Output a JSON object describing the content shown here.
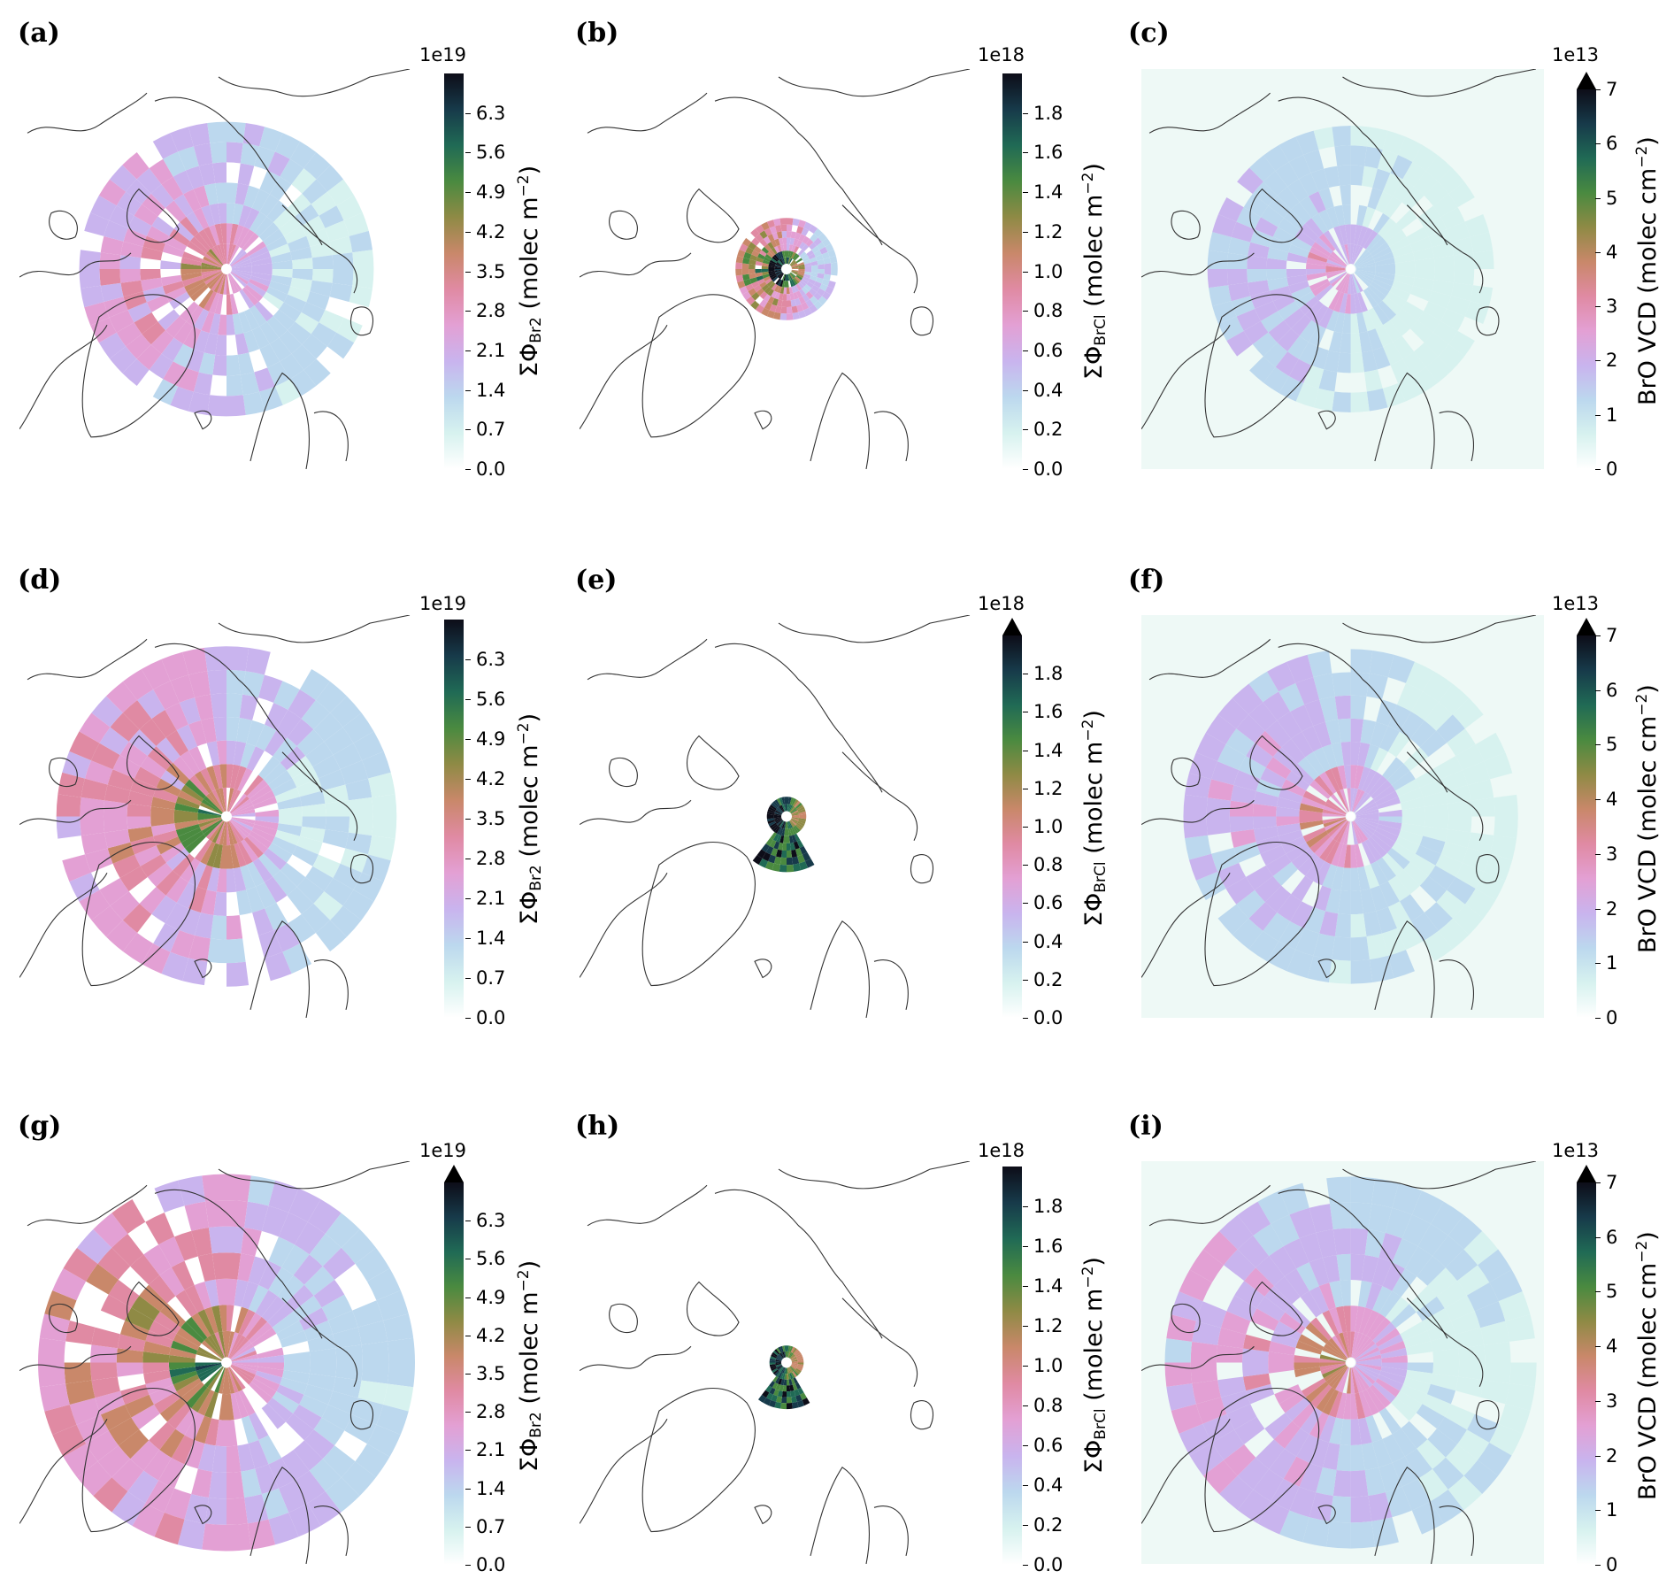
{
  "colormap": [
    "#ffffff",
    "#d7f2ef",
    "#bcd8ee",
    "#c9b4ee",
    "#e3a0d4",
    "#e08aa3",
    "#c9886a",
    "#8f8a45",
    "#4a8a40",
    "#206a55",
    "#173a4a",
    "#0d0d18"
  ],
  "chart_data": [
    {
      "id": "a",
      "type": "heatmap",
      "letter": "(a)",
      "quantity": "br2",
      "cb_scale": "1e19",
      "cb_ticks": [
        "6.3",
        "5.6",
        "4.9",
        "4.2",
        "3.5",
        "2.8",
        "2.1",
        "1.4",
        "0.7",
        "0.0"
      ],
      "cb_range": [
        0,
        7.0
      ],
      "extend": false,
      "map_background": "#ffffff",
      "field": {
        "extent": 0.62,
        "intensity": 0.55,
        "center_level": 0.35,
        "wedge_arc": null
      }
    },
    {
      "id": "b",
      "type": "heatmap",
      "letter": "(b)",
      "quantity": "brcl",
      "cb_scale": "1e18",
      "cb_ticks": [
        "1.8",
        "1.6",
        "1.4",
        "1.2",
        "1.0",
        "0.8",
        "0.6",
        "0.4",
        "0.2",
        "0.0"
      ],
      "cb_range": [
        0,
        2.0
      ],
      "extend": false,
      "map_background": "#ffffff",
      "field": {
        "extent": 0.2,
        "intensity": 0.9,
        "center_level": 0.9,
        "wedge_arc": null
      }
    },
    {
      "id": "c",
      "type": "heatmap",
      "letter": "(c)",
      "quantity": "bro",
      "cb_scale": "1e13",
      "cb_ticks": [
        "7",
        "6",
        "5",
        "4",
        "3",
        "2",
        "1",
        "0"
      ],
      "cb_range": [
        0,
        7
      ],
      "extend": true,
      "map_background": "#eef9f6",
      "field": {
        "extent": 0.6,
        "intensity": 0.35,
        "center_level": 0.25,
        "wedge_arc": null
      }
    },
    {
      "id": "d",
      "type": "heatmap",
      "letter": "(d)",
      "quantity": "br2",
      "cb_scale": "1e19",
      "cb_ticks": [
        "6.3",
        "5.6",
        "4.9",
        "4.2",
        "3.5",
        "2.8",
        "2.1",
        "1.4",
        "0.7",
        "0.0"
      ],
      "cb_range": [
        0,
        7.0
      ],
      "extend": false,
      "map_background": "#ffffff",
      "field": {
        "extent": 0.72,
        "intensity": 0.62,
        "center_level": 0.45,
        "wedge_arc": null
      }
    },
    {
      "id": "e",
      "type": "heatmap",
      "letter": "(e)",
      "quantity": "brcl",
      "cb_scale": "1e18",
      "cb_ticks": [
        "1.8",
        "1.6",
        "1.4",
        "1.2",
        "1.0",
        "0.8",
        "0.6",
        "0.4",
        "0.2",
        "0.0"
      ],
      "cb_range": [
        0,
        2.0
      ],
      "extend": true,
      "map_background": "#ffffff",
      "field": {
        "extent": 0.22,
        "intensity": 0.9,
        "center_level": 0.9,
        "wedge_arc": "south"
      }
    },
    {
      "id": "f",
      "type": "heatmap",
      "letter": "(f)",
      "quantity": "bro",
      "cb_scale": "1e13",
      "cb_ticks": [
        "7",
        "6",
        "5",
        "4",
        "3",
        "2",
        "1",
        "0"
      ],
      "cb_range": [
        0,
        7
      ],
      "extend": true,
      "map_background": "#eef9f6",
      "field": {
        "extent": 0.7,
        "intensity": 0.42,
        "center_level": 0.35,
        "wedge_arc": null
      }
    },
    {
      "id": "g",
      "type": "heatmap",
      "letter": "(g)",
      "quantity": "br2",
      "cb_scale": "1e19",
      "cb_ticks": [
        "6.3",
        "5.6",
        "4.9",
        "4.2",
        "3.5",
        "2.8",
        "2.1",
        "1.4",
        "0.7",
        "0.0"
      ],
      "cb_range": [
        0,
        7.0
      ],
      "extend": true,
      "map_background": "#ffffff",
      "field": {
        "extent": 0.8,
        "intensity": 0.72,
        "center_level": 0.4,
        "wedge_arc": null
      }
    },
    {
      "id": "h",
      "type": "heatmap",
      "letter": "(h)",
      "quantity": "brcl",
      "cb_scale": "1e18",
      "cb_ticks": [
        "1.8",
        "1.6",
        "1.4",
        "1.2",
        "1.0",
        "0.8",
        "0.6",
        "0.4",
        "0.2",
        "0.0"
      ],
      "cb_range": [
        0,
        2.0
      ],
      "extend": false,
      "map_background": "#ffffff",
      "field": {
        "extent": 0.18,
        "intensity": 0.85,
        "center_level": 0.85,
        "wedge_arc": "south-long"
      }
    },
    {
      "id": "i",
      "type": "heatmap",
      "letter": "(i)",
      "quantity": "bro",
      "cb_scale": "1e13",
      "cb_ticks": [
        "7",
        "6",
        "5",
        "4",
        "3",
        "2",
        "1",
        "0"
      ],
      "cb_range": [
        0,
        7
      ],
      "extend": true,
      "map_background": "#eef9f6",
      "field": {
        "extent": 0.78,
        "intensity": 0.5,
        "center_level": 0.4,
        "wedge_arc": null
      }
    }
  ]
}
